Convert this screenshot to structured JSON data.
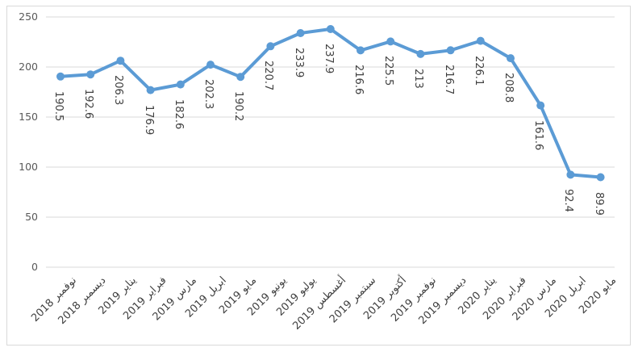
{
  "chart_data": {
    "type": "line",
    "title": "",
    "xlabel": "",
    "ylabel": "",
    "categories": [
      "نوفمبر 2018",
      "ديسمبر 2018",
      "يناير 2019",
      "فبراير 2019",
      "مارس 2019",
      "ابريل 2019",
      "مايو 2019",
      "يونيو 2019",
      "يوليو 2019",
      "أغسطس 2019",
      "سبتمبر 2019",
      "أكتوبر 2019",
      "نوفمبر 2019",
      "ديسمبر 2019",
      "يناير 2020",
      "فبراير 2020",
      "مارس 2020",
      "ابريل 2020",
      "مايو 2020"
    ],
    "series": [
      {
        "name": "",
        "values": [
          190.5,
          192.6,
          206.3,
          176.9,
          182.6,
          202.3,
          190.2,
          220.7,
          233.9,
          237.9,
          216.6,
          225.5,
          213,
          216.7,
          226.1,
          208.8,
          161.6,
          92.4,
          89.9
        ]
      }
    ],
    "data_labels_visible": true,
    "y_ticks": [
      0,
      50,
      100,
      150,
      200,
      250
    ],
    "ylim": [
      0,
      250
    ],
    "grid": true,
    "legend": "none",
    "colors": {
      "line": "#5B9BD5",
      "marker": "#5B9BD5",
      "gridline": "#D9D9D9",
      "frame_border": "#D9D9D9",
      "y_tick_label": "#595959",
      "data_label": "#404040",
      "x_axis_label": "#404040",
      "background": "#FFFFFF"
    }
  }
}
